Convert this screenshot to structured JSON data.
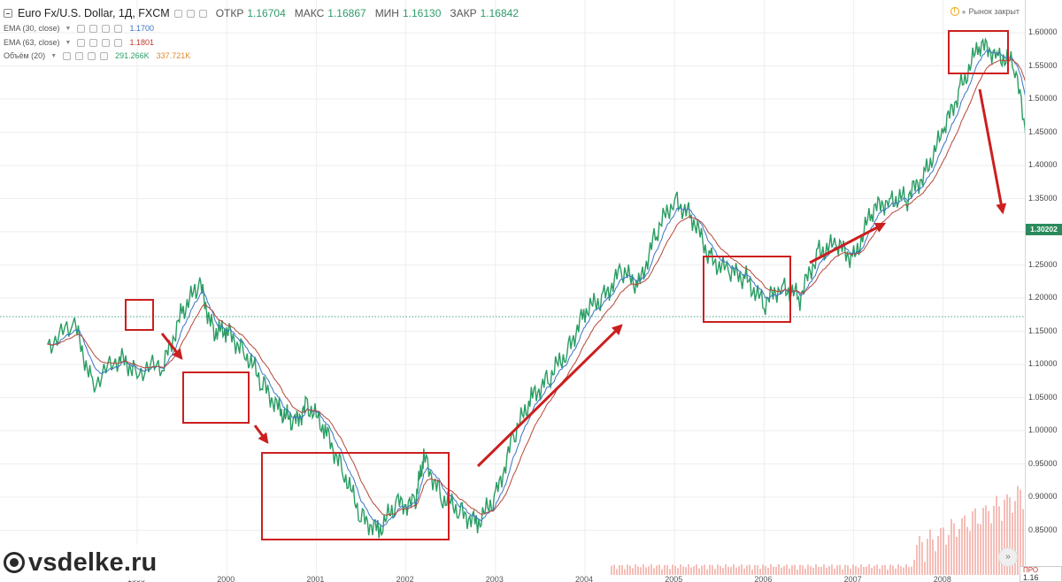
{
  "header": {
    "symbol": "Euro Fx/U.S. Dollar, 1Д, FXCM",
    "ohlc": [
      {
        "k": "ОТКР",
        "v": "1.16704"
      },
      {
        "k": "МАКС",
        "v": "1.16867"
      },
      {
        "k": "МИН",
        "v": "1.16130"
      },
      {
        "k": "ЗАКР",
        "v": "1.16842"
      }
    ]
  },
  "indicators": [
    {
      "name": "EMA (30, close)",
      "value": "1.1700",
      "color": "#3b73c4"
    },
    {
      "name": "EMA (63, close)",
      "value": "1.1801",
      "color": "#c0392b"
    },
    {
      "name": "Объём (20)",
      "value": "291.266K",
      "value2": "337.721K",
      "color": "#2e9c6a",
      "color2": "#e08a2c"
    }
  ],
  "market_status": "Рынок закрыт",
  "price_tag": "1.30202",
  "watermark": "vsdelke.ru",
  "pro_label": "ПРО",
  "pro_value": "1.16",
  "scroll_icon": "double-chevron-right-icon",
  "colors": {
    "price": "#2a9d63",
    "ema30": "#3b73c4",
    "ema63": "#b5473a",
    "boxes": "#cc1f1f",
    "volume": "#f2a8a0"
  },
  "chart_data": {
    "type": "line",
    "y_axis_labels": [
      "1.60000",
      "1.55000",
      "1.50000",
      "1.45000",
      "1.40000",
      "1.35000",
      "1.30000",
      "1.25000",
      "1.20000",
      "1.15000",
      "1.10000",
      "1.05000",
      "1.00000",
      "0.95000",
      "0.90000",
      "0.85000"
    ],
    "x_axis_labels": [
      "1999",
      "2000",
      "2001",
      "2002",
      "2003",
      "2004",
      "2005",
      "2006",
      "2007",
      "2008"
    ],
    "ylim": [
      0.82,
      1.63
    ],
    "series": [
      {
        "name": "EURUSD",
        "x": [
          1998.0,
          1998.3,
          1998.5,
          1998.8,
          1999.0,
          1999.3,
          1999.5,
          1999.7,
          1999.85,
          2000.0,
          2000.2,
          2000.4,
          2000.6,
          2000.75,
          2000.9,
          2001.1,
          2001.3,
          2001.5,
          2001.7,
          2001.9,
          2002.1,
          2002.2,
          2002.4,
          2002.6,
          2002.8,
          2003.0,
          2003.2,
          2003.4,
          2003.6,
          2003.8,
          2004.0,
          2004.2,
          2004.4,
          2004.6,
          2004.8,
          2005.0,
          2005.2,
          2005.4,
          2005.6,
          2005.8,
          2006.0,
          2006.2,
          2006.4,
          2006.6,
          2006.8,
          2007.0,
          2007.2,
          2007.4,
          2007.6,
          2007.8,
          2008.0,
          2008.2,
          2008.4,
          2008.6,
          2008.8,
          2009.0,
          2009.1,
          2009.25
        ],
        "y": [
          1.13,
          1.16,
          1.07,
          1.11,
          1.09,
          1.1,
          1.18,
          1.22,
          1.15,
          1.15,
          1.12,
          1.07,
          1.03,
          1.01,
          1.04,
          1.0,
          0.94,
          0.87,
          0.85,
          0.89,
          0.89,
          0.96,
          0.9,
          0.88,
          0.86,
          0.9,
          0.99,
          1.05,
          1.08,
          1.12,
          1.18,
          1.2,
          1.24,
          1.22,
          1.3,
          1.35,
          1.32,
          1.26,
          1.24,
          1.23,
          1.19,
          1.22,
          1.2,
          1.27,
          1.28,
          1.26,
          1.33,
          1.35,
          1.35,
          1.39,
          1.45,
          1.52,
          1.58,
          1.57,
          1.55,
          1.38,
          1.26,
          1.3
        ]
      },
      {
        "name": "EMA (30, close)"
      },
      {
        "name": "EMA (63, close)"
      }
    ],
    "annotations": "red boxes around ranges and red trend arrows",
    "grid": true
  }
}
